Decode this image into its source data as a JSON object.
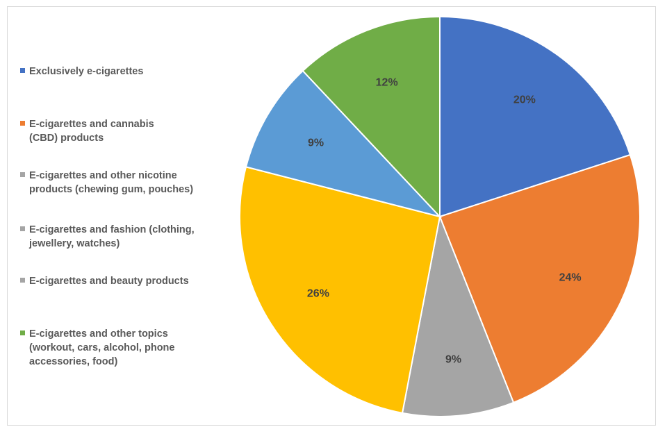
{
  "chart_data": {
    "type": "pie",
    "start_angle_deg": 0,
    "direction": "clockwise",
    "legend_position": "left",
    "slices": [
      {
        "label": "Exclusively e-cigarettes",
        "value": 20,
        "data_label": "20%",
        "color": "#4472C4"
      },
      {
        "label": "E-cigarettes and cannabis\n(CBD) products",
        "value": 24,
        "data_label": "24%",
        "color": "#ED7D31"
      },
      {
        "label": "E-cigarettes and other nicotine\nproducts (chewing gum, pouches)",
        "value": 9,
        "data_label": "9%",
        "color": "#A5A5A5"
      },
      {
        "label": "E-cigarettes and fashion (clothing,\njewellery, watches)",
        "value": 26,
        "data_label": "26%",
        "color": "#FFC000"
      },
      {
        "label": "E-cigarettes and beauty products",
        "value": 9,
        "data_label": "9%",
        "color": "#5B9BD5"
      },
      {
        "label": "E-cigarettes and other topics\n(workout, cars, alcohol, phone\naccessories, food)",
        "value": 12,
        "data_label": "12%",
        "color": "#70AD47"
      }
    ],
    "legend_colors": [
      "#4472C4",
      "#ED7D31",
      "#A5A5A5",
      "#A5A5A5",
      "#A5A5A5",
      "#70AD47"
    ],
    "legend_order": [
      0,
      1,
      2,
      3,
      3,
      5
    ]
  }
}
